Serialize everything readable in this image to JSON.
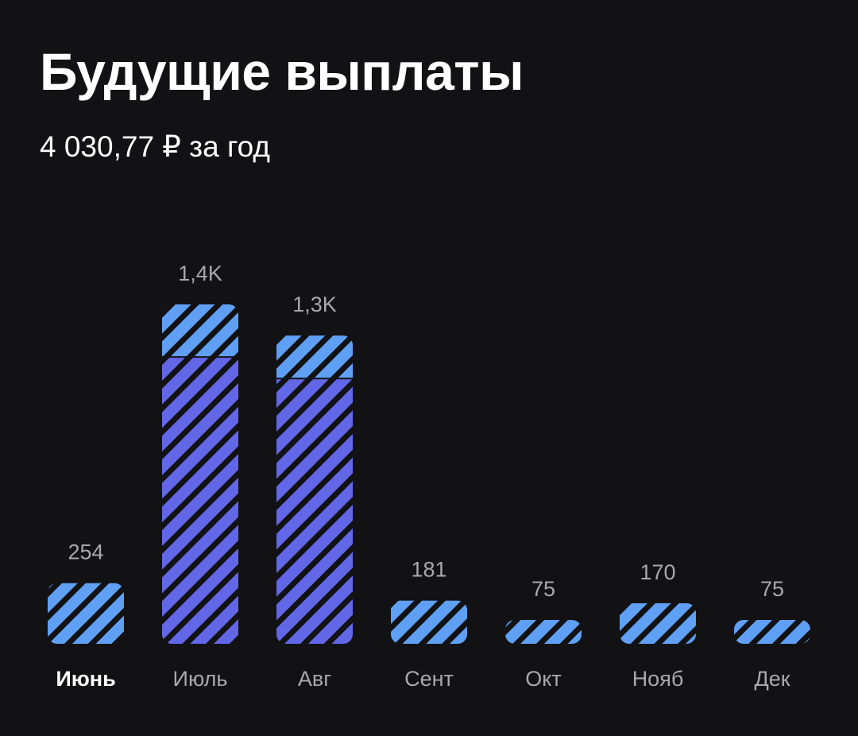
{
  "header": {
    "title": "Будущие выплаты",
    "subtitle": "4 030,77 ₽ за год"
  },
  "colors": {
    "background": "#121214",
    "bar_light": "#5fa0f5",
    "bar_dark": "#6267e8",
    "stripe": "#121214",
    "label": "#a8a8ae",
    "active_label": "#ffffff"
  },
  "chart_data": {
    "type": "bar",
    "stacked": true,
    "categories": [
      "Июнь",
      "Июль",
      "Авг",
      "Сент",
      "Окт",
      "Нояб",
      "Дек"
    ],
    "active_category": "Июнь",
    "value_labels": [
      "254",
      "1,4K",
      "1,3K",
      "181",
      "75",
      "170",
      "75"
    ],
    "series": [
      {
        "color_role": "bar_dark",
        "values": [
          0,
          1200,
          1110,
          0,
          0,
          0,
          0
        ]
      },
      {
        "color_role": "bar_light",
        "values": [
          254,
          220,
          180,
          181,
          75,
          170,
          75
        ]
      }
    ],
    "totals": [
      254,
      1420,
      1290,
      181,
      75,
      170,
      75
    ],
    "ylim": [
      0,
      1420
    ],
    "grid": false
  }
}
